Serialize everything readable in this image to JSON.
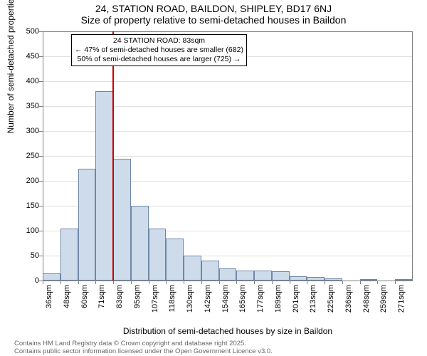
{
  "titles": {
    "line1": "24, STATION ROAD, BAILDON, SHIPLEY, BD17 6NJ",
    "line2": "Size of property relative to semi-detached houses in Baildon"
  },
  "axes": {
    "ylabel": "Number of semi-detached properties",
    "xlabel": "Distribution of semi-detached houses by size in Baildon"
  },
  "footer": {
    "line1": "Contains HM Land Registry data © Crown copyright and database right 2025.",
    "line2": "Contains public sector information licensed under the Open Government Licence v3.0."
  },
  "chart": {
    "type": "histogram",
    "ylim": [
      0,
      500
    ],
    "ytick_step": 50,
    "bar_fill": "#cddbea",
    "bar_stroke": "#6f87a6",
    "grid_color": "#e0e0e0",
    "axis_color": "#808080",
    "marker_color": "#cc0000",
    "background_color": "#ffffff",
    "title_fontsize": 14,
    "label_fontsize": 12,
    "tick_fontsize": 11,
    "categories": [
      "36sqm",
      "48sqm",
      "60sqm",
      "71sqm",
      "83sqm",
      "95sqm",
      "107sqm",
      "118sqm",
      "130sqm",
      "142sqm",
      "154sqm",
      "165sqm",
      "177sqm",
      "189sqm",
      "201sqm",
      "213sqm",
      "225sqm",
      "236sqm",
      "248sqm",
      "259sqm",
      "271sqm"
    ],
    "values": [
      15,
      105,
      225,
      380,
      245,
      150,
      105,
      85,
      50,
      40,
      25,
      20,
      20,
      18,
      8,
      7,
      5,
      0,
      2,
      0,
      2
    ],
    "yticks": [
      0,
      50,
      100,
      150,
      200,
      250,
      300,
      350,
      400,
      450,
      500
    ],
    "marker_index": 4,
    "annotation": {
      "line1": "24 STATION ROAD: 83sqm",
      "line2": "← 47% of semi-detached houses are smaller (682)",
      "line3": "50% of semi-detached houses are larger (725) →"
    }
  }
}
